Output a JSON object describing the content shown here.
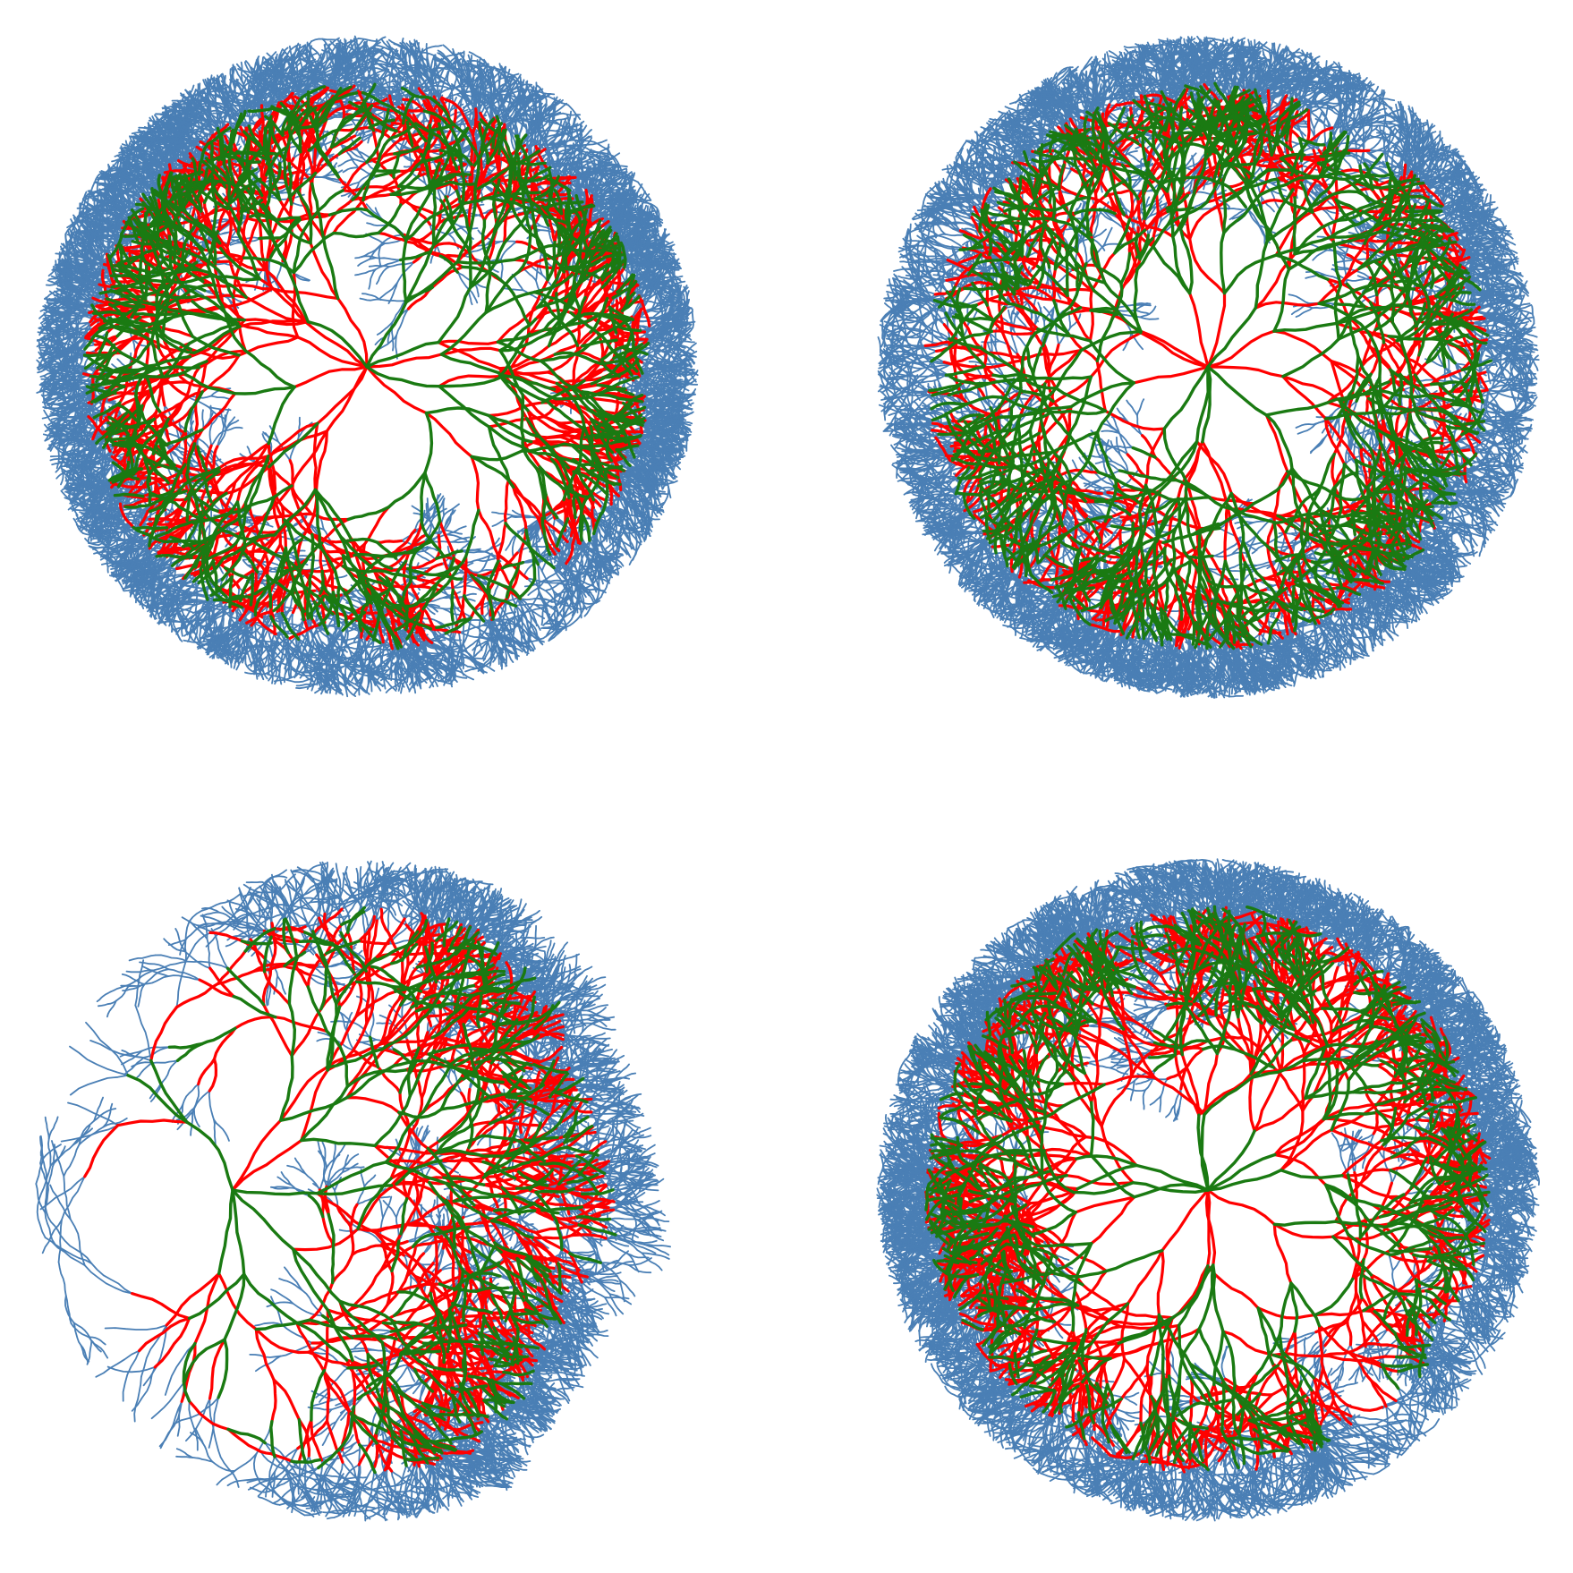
{
  "figure": {
    "type": "branching-network-panels",
    "panel_count": 4,
    "background": "#ffffff",
    "colors": {
      "red_vessels": "#ff0000",
      "green_vessels": "#1a7a12",
      "blue_tips": "#4a7fb5"
    },
    "legend": "none",
    "axes": "none",
    "text_labels": "none"
  },
  "panels": [
    {
      "id": "top-left",
      "shape": "full-disc",
      "red_share": 0.55,
      "green_share": 0.45,
      "blue_tip_density": "high",
      "seed": 11
    },
    {
      "id": "top-right",
      "shape": "full-disc",
      "red_share": 0.45,
      "green_share": 0.55,
      "blue_tip_density": "high",
      "seed": 23
    },
    {
      "id": "bottom-left",
      "shape": "half-disc-right",
      "red_share": 0.65,
      "green_share": 0.35,
      "blue_tip_density": "medium",
      "seed": 37
    },
    {
      "id": "bottom-right",
      "shape": "full-disc",
      "red_share": 0.6,
      "green_share": 0.4,
      "blue_tip_density": "high",
      "seed": 53
    }
  ]
}
